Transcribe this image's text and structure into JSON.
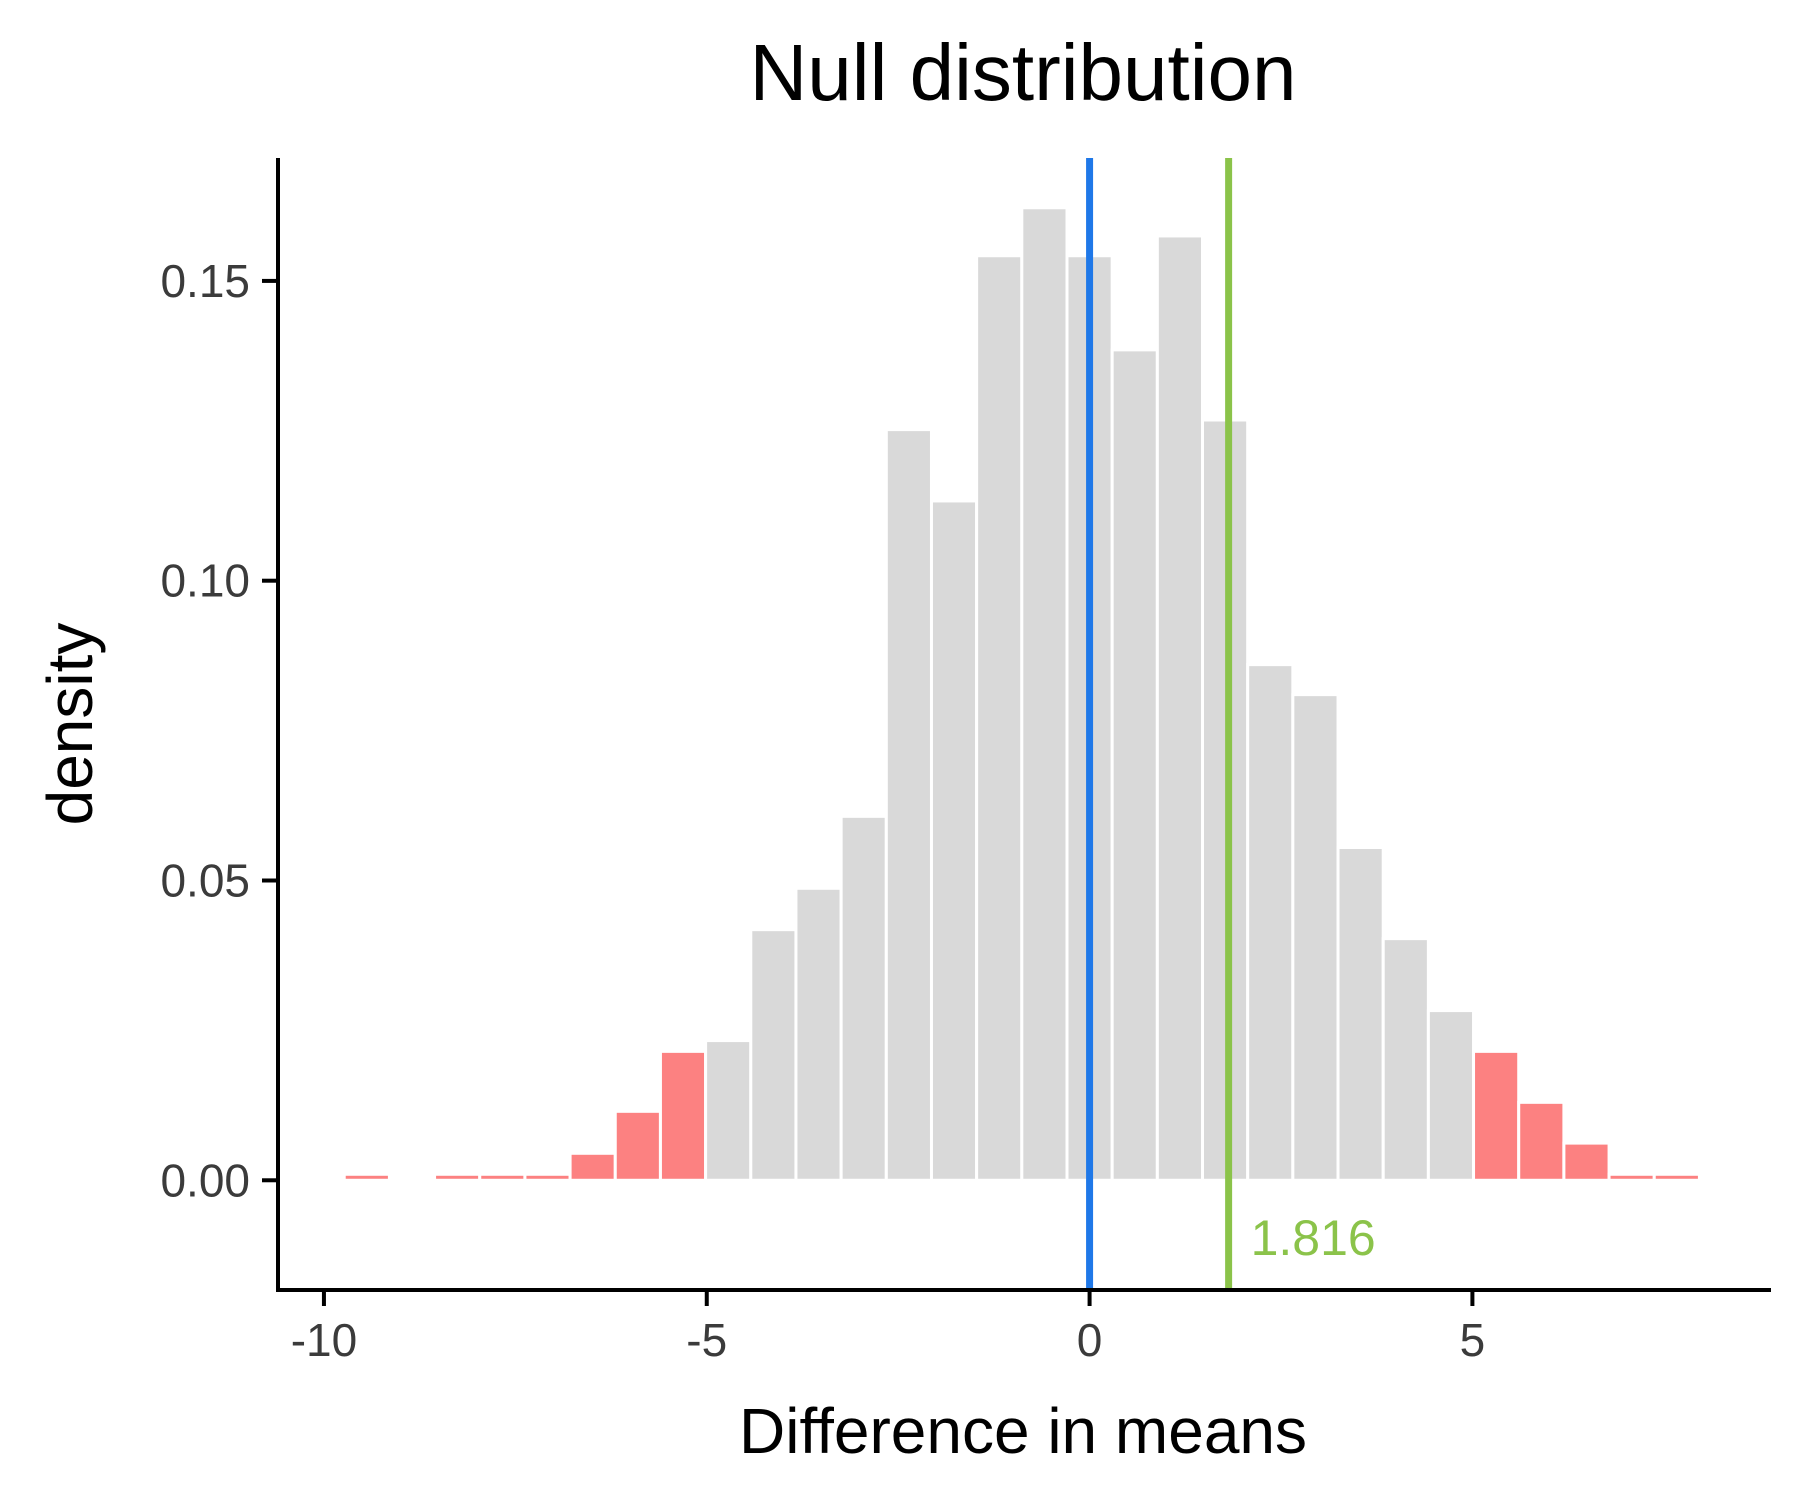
{
  "chart_data": {
    "type": "bar",
    "title": "Null distribution",
    "xlabel": "Difference in means",
    "ylabel": "density",
    "xlim": [
      -10.6,
      8.9
    ],
    "ylim": [
      -0.0183,
      0.1705
    ],
    "x_ticks": [
      -10,
      -5,
      0,
      5
    ],
    "x_tick_labels": [
      "-10",
      "-5",
      "0",
      "5"
    ],
    "y_ticks": [
      0.0,
      0.05,
      0.1,
      0.15
    ],
    "y_tick_labels": [
      "0.00",
      "0.05",
      "0.10",
      "0.15"
    ],
    "grid": false,
    "legend": "none",
    "bin_width": 0.59,
    "bins": [
      {
        "x": -9.44,
        "value": 0.001,
        "shaded": true
      },
      {
        "x": -8.26,
        "value": 0.001,
        "shaded": true
      },
      {
        "x": -7.67,
        "value": 0.001,
        "shaded": true
      },
      {
        "x": -7.08,
        "value": 0.001,
        "shaded": true
      },
      {
        "x": -6.49,
        "value": 0.0045,
        "shaded": true
      },
      {
        "x": -5.9,
        "value": 0.0115,
        "shaded": true
      },
      {
        "x": -5.31,
        "value": 0.0215,
        "shaded": true
      },
      {
        "x": -4.72,
        "value": 0.0233,
        "shaded": false
      },
      {
        "x": -4.13,
        "value": 0.0418,
        "shaded": false
      },
      {
        "x": -3.54,
        "value": 0.0487,
        "shaded": false
      },
      {
        "x": -2.95,
        "value": 0.0607,
        "shaded": false
      },
      {
        "x": -2.36,
        "value": 0.1252,
        "shaded": false
      },
      {
        "x": -1.77,
        "value": 0.1133,
        "shaded": false
      },
      {
        "x": -1.18,
        "value": 0.1542,
        "shaded": false
      },
      {
        "x": -0.59,
        "value": 0.1622,
        "shaded": false
      },
      {
        "x": 0.0,
        "value": 0.1542,
        "shaded": false
      },
      {
        "x": 0.59,
        "value": 0.1385,
        "shaded": false
      },
      {
        "x": 1.18,
        "value": 0.1575,
        "shaded": false
      },
      {
        "x": 1.77,
        "value": 0.1268,
        "shaded": false
      },
      {
        "x": 2.36,
        "value": 0.086,
        "shaded": false
      },
      {
        "x": 2.95,
        "value": 0.081,
        "shaded": false
      },
      {
        "x": 3.54,
        "value": 0.0555,
        "shaded": false
      },
      {
        "x": 4.13,
        "value": 0.0403,
        "shaded": false
      },
      {
        "x": 4.72,
        "value": 0.0283,
        "shaded": false
      },
      {
        "x": 5.31,
        "value": 0.0215,
        "shaded": true
      },
      {
        "x": 5.9,
        "value": 0.013,
        "shaded": true
      },
      {
        "x": 6.49,
        "value": 0.0062,
        "shaded": true
      },
      {
        "x": 7.08,
        "value": 0.001,
        "shaded": true
      },
      {
        "x": 7.67,
        "value": 0.001,
        "shaded": true
      }
    ],
    "reference_lines": [
      {
        "x": 0,
        "color": "#1f78e8"
      },
      {
        "x": 1.816,
        "color": "#8bc34a",
        "label": "1.816"
      }
    ],
    "colors": {
      "bar": "#d9d9d9",
      "bar_shaded": "#fc8181",
      "bar_outline": "#ffffff",
      "axis": "#000000"
    }
  }
}
